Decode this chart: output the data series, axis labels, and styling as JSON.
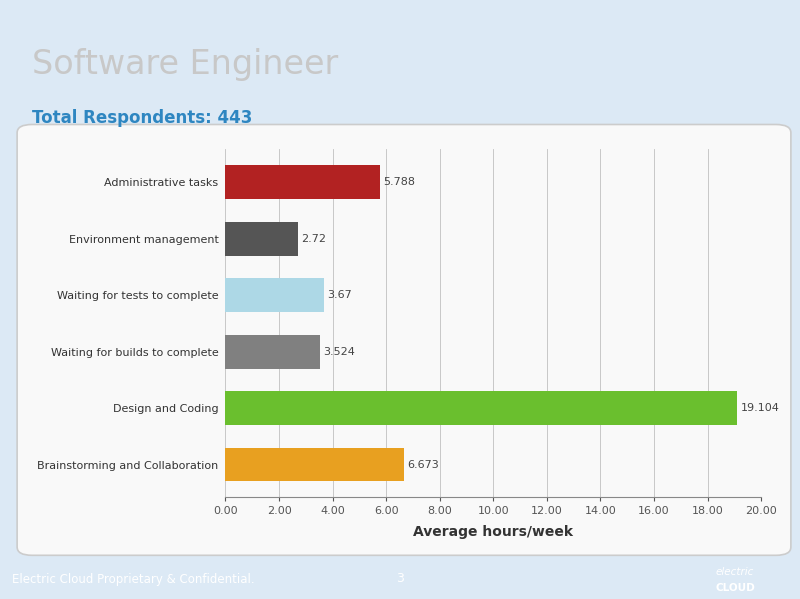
{
  "title": "Software Engineer",
  "subtitle": "Total Respondents: 443",
  "categories": [
    "Administrative tasks",
    "Environment management",
    "Waiting for tests to complete",
    "Waiting for builds to complete",
    "Design and Coding",
    "Brainstorming and Collaboration"
  ],
  "values": [
    5.788,
    2.72,
    3.67,
    3.524,
    19.104,
    6.673
  ],
  "value_labels": [
    "5.788",
    "2.72",
    "3.67",
    "3.524",
    "19.104",
    "6.673"
  ],
  "bar_colors": [
    "#b22222",
    "#555555",
    "#add8e6",
    "#808080",
    "#6abf2e",
    "#e8a020"
  ],
  "xlabel": "Average hours/week",
  "xlim": [
    0,
    20.0
  ],
  "xticks": [
    0.0,
    2.0,
    4.0,
    6.0,
    8.0,
    10.0,
    12.0,
    14.0,
    16.0,
    18.0,
    20.0
  ],
  "xtick_labels": [
    "0.00",
    "2.00",
    "4.00",
    "6.00",
    "8.00",
    "10.00",
    "12.00",
    "14.00",
    "16.00",
    "18.00",
    "20.00"
  ],
  "page_bg_color": "#dce9f5",
  "chart_panel_bg": "#f9f9f9",
  "chart_border_color": "#cccccc",
  "footer_bg": "#5b9bd5",
  "footer_text": "Electric Cloud Proprietary & Confidential.",
  "footer_page": "3",
  "title_color": "#c8c8c8",
  "subtitle_color": "#2e86c1",
  "label_color": "#333333",
  "value_label_color": "#444444",
  "grid_color": "#888888",
  "xlabel_fontsize": 10,
  "title_fontsize": 24,
  "subtitle_fontsize": 12,
  "bar_label_fontsize": 8,
  "ytick_fontsize": 8,
  "xtick_fontsize": 8,
  "bar_height": 0.6,
  "top_bar_color": "#5b9bd5"
}
